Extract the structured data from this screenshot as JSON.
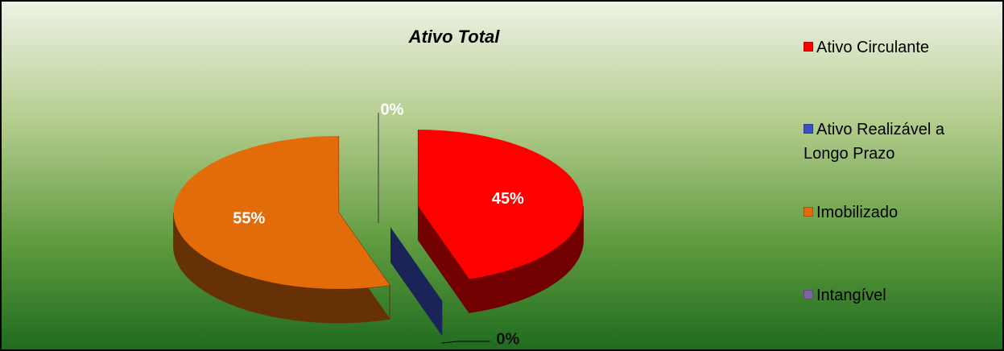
{
  "chart_data": {
    "type": "pie",
    "title": "Ativo Total",
    "categories": [
      "Ativo Circulante",
      "Ativo Realizável a Longo Prazo",
      "Imobilizado",
      "Intangível"
    ],
    "values": [
      45,
      0,
      55,
      0
    ],
    "value_labels": [
      "45%",
      "0%",
      "55%",
      "0%"
    ],
    "colors": [
      "#ff0000",
      "#3b50c4",
      "#e36c0a",
      "#8064a2"
    ],
    "legend": "right"
  }
}
